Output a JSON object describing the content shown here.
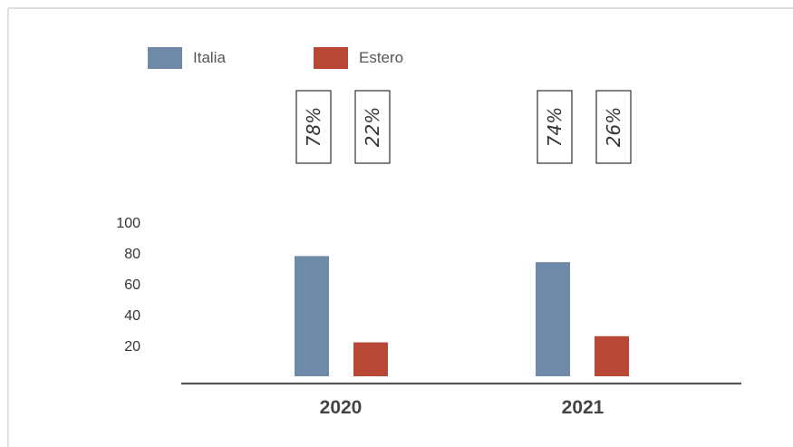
{
  "chart_data": {
    "type": "bar",
    "categories": [
      "2020",
      "2021"
    ],
    "series": [
      {
        "name": "Italia",
        "values": [
          78,
          74
        ],
        "labels": [
          "78%",
          "74%"
        ],
        "color": "#6e8aa8"
      },
      {
        "name": "Estero",
        "values": [
          22,
          26
        ],
        "labels": [
          "22%",
          "26%"
        ],
        "color": "#b84835"
      }
    ],
    "yticks": [
      20,
      40,
      60,
      80,
      100
    ],
    "ylim": [
      0,
      100
    ],
    "grid": false,
    "legend_position": "top-left",
    "axis_color": "#555555",
    "frame_color": "#cccccc"
  }
}
